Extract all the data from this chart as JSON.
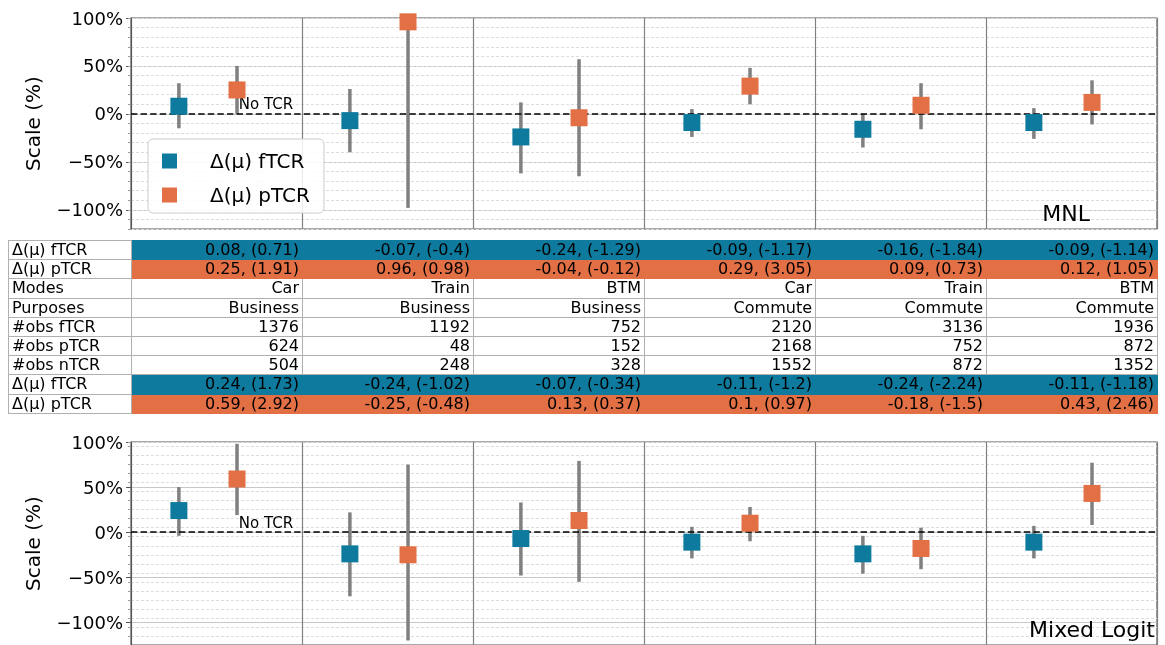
{
  "chart_data": [
    {
      "type": "scatter",
      "title": "MNL",
      "ylabel": "Scale (%)",
      "categories": [
        null,
        null,
        null,
        null,
        null,
        null
      ],
      "ylim": [
        -120,
        100
      ],
      "yticks": [
        {
          "value": -100,
          "label": "−100%"
        },
        {
          "value": -50,
          "label": "−50%"
        },
        {
          "value": 0,
          "label": "0%"
        },
        {
          "value": 50,
          "label": "50%"
        },
        {
          "value": 100,
          "label": "100%"
        }
      ],
      "grid": true,
      "legend": "bottom left",
      "marker": "square",
      "ref_lines": [
        {
          "axis": "y",
          "value": 0,
          "label": "No TCR",
          "line_style": "dashed",
          "color": "#000000"
        }
      ],
      "series": [
        {
          "name": "Δ(μ) fTCR",
          "color": "#0e7a9e",
          "values": [
            8,
            -7,
            -24,
            -9,
            -16,
            -9
          ],
          "errors": [
            [
              -15,
              32
            ],
            [
              -40,
              26
            ],
            [
              -62,
              12
            ],
            [
              -24,
              5
            ],
            [
              -35,
              0
            ],
            [
              -26,
              6
            ]
          ]
        },
        {
          "name": "Δ(μ) pTCR",
          "color": "#e36f45",
          "values": [
            25,
            96,
            -4,
            29,
            9,
            12
          ],
          "errors": [
            [
              0,
              50
            ],
            [
              -98,
              96
            ],
            [
              -65,
              57
            ],
            [
              10,
              48
            ],
            [
              -16,
              32
            ],
            [
              -11,
              35
            ]
          ]
        }
      ]
    },
    {
      "type": "other",
      "y_categories": [
        "Δ(μ) fTCR",
        "Δ(μ) pTCR",
        "Modes",
        "Purposes",
        "#obs fTCR",
        "#obs pTCR",
        "#obs nTCR",
        "Δ(μ) fTCR",
        "Δ(μ) pTCR"
      ],
      "cell_labels": [
        [
          "0.08, (0.71)",
          "-0.07, (-0.4)",
          "-0.24, (-1.29)",
          "-0.09, (-1.17)",
          "-0.16, (-1.84)",
          "-0.09, (-1.14)"
        ],
        [
          "0.25, (1.91)",
          "0.96, (0.98)",
          "-0.04, (-0.12)",
          "0.29, (3.05)",
          "0.09, (0.73)",
          "0.12, (1.05)"
        ],
        [
          "Car",
          "Train",
          "BTM",
          "Car",
          "Train",
          "BTM"
        ],
        [
          "Business",
          "Business",
          "Business",
          "Commute",
          "Commute",
          "Commute"
        ],
        [
          "1376",
          "1192",
          "752",
          "2120",
          "3136",
          "1936"
        ],
        [
          "624",
          "48",
          "152",
          "2168",
          "752",
          "872"
        ],
        [
          "504",
          "248",
          "328",
          "1552",
          "872",
          "1352"
        ],
        [
          "0.24, (1.73)",
          "-0.24, (-1.02)",
          "-0.07, (-0.34)",
          "-0.11, (-1.2)",
          "-0.24, (-2.24)",
          "-0.11, (-1.18)"
        ],
        [
          "0.59, (2.92)",
          "-0.25, (-0.48)",
          "0.13, (0.37)",
          "0.1, (0.97)",
          "-0.18, (-1.5)",
          "0.43, (2.46)"
        ]
      ],
      "colors": [
        "#0e7a9e",
        "#e36f45",
        null,
        null,
        null,
        null,
        null,
        "#0e7a9e",
        "#e36f45"
      ]
    },
    {
      "type": "scatter",
      "title": "Mixed Logit",
      "ylabel": "Scale (%)",
      "categories": [
        null,
        null,
        null,
        null,
        null,
        null
      ],
      "ylim": [
        -125,
        100
      ],
      "yticks": [
        {
          "value": -100,
          "label": "−100%"
        },
        {
          "value": -50,
          "label": "−50%"
        },
        {
          "value": 0,
          "label": "0%"
        },
        {
          "value": 50,
          "label": "50%"
        },
        {
          "value": 100,
          "label": "100%"
        }
      ],
      "grid": true,
      "marker": "square",
      "ref_lines": [
        {
          "axis": "y",
          "value": 0,
          "label": "No TCR",
          "line_style": "dashed",
          "color": "#000000"
        }
      ],
      "series": [
        {
          "color": "#0e7a9e",
          "values": [
            24,
            -24,
            -7,
            -11,
            -24,
            -11
          ],
          "errors": [
            [
              -4,
              50
            ],
            [
              -71,
              22
            ],
            [
              -48,
              33
            ],
            [
              -29,
              6
            ],
            [
              -46,
              -4
            ],
            [
              -29,
              7
            ]
          ]
        },
        {
          "color": "#e36f45",
          "values": [
            59,
            -25,
            13,
            10,
            -18,
            43
          ],
          "errors": [
            [
              19,
              98
            ],
            [
              -120,
              75
            ],
            [
              -55,
              79
            ],
            [
              -10,
              28
            ],
            [
              -41,
              5
            ],
            [
              8,
              77
            ]
          ]
        }
      ]
    }
  ]
}
